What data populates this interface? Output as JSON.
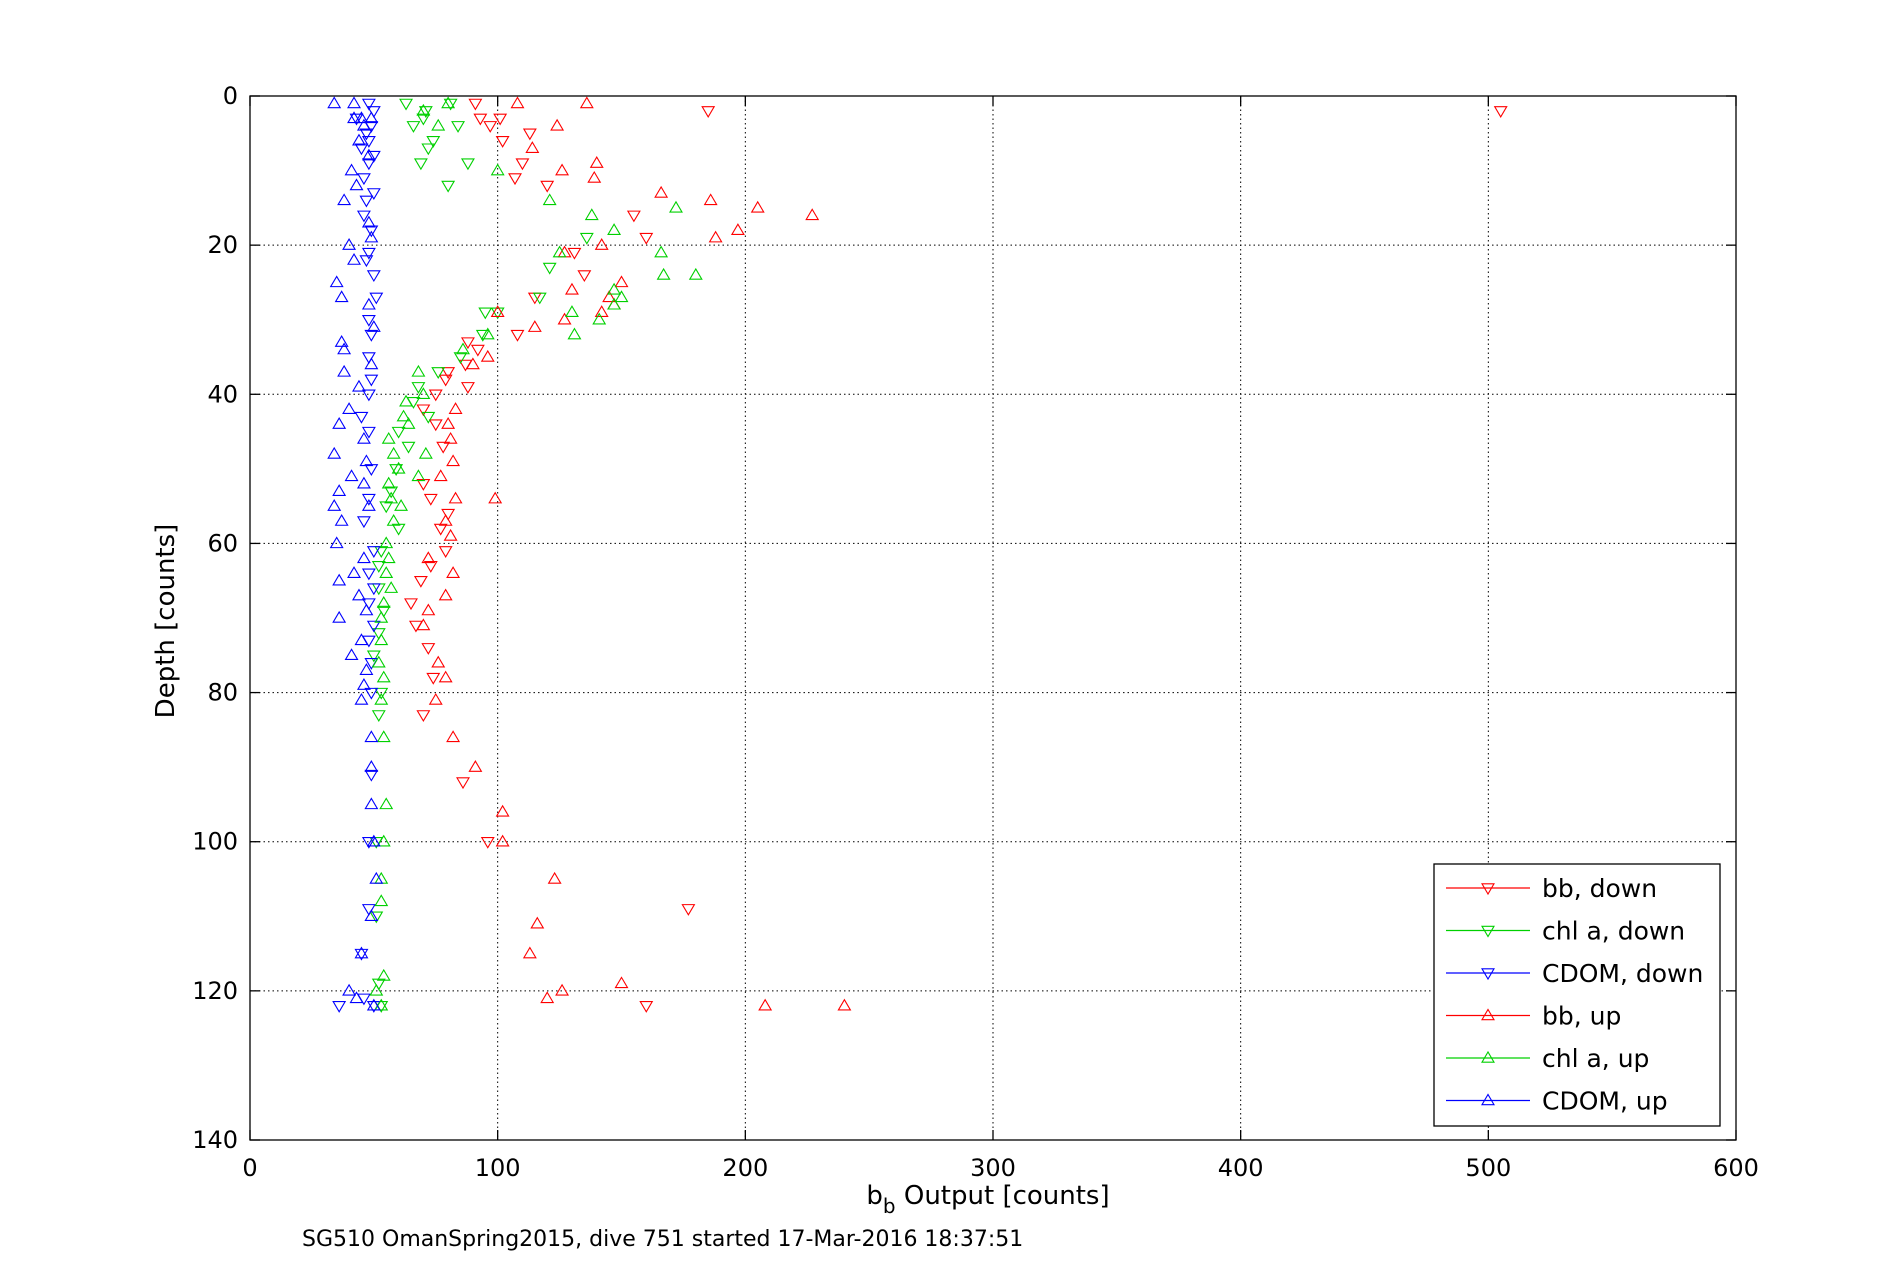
{
  "chart_data": {
    "type": "scatter",
    "title": "",
    "xlabel_main": "b",
    "xlabel_sub": "b",
    "xlabel_rest": " Output [counts]",
    "ylabel": "Depth [counts]",
    "xlim": [
      0,
      600
    ],
    "ylim": [
      0,
      140
    ],
    "y_reversed": true,
    "xticks": [
      "0",
      "100",
      "200",
      "300",
      "400",
      "500",
      "600"
    ],
    "yticks": [
      "0",
      "20",
      "40",
      "60",
      "80",
      "100",
      "120",
      "140"
    ],
    "grid": true,
    "legend_position": "lower-right",
    "caption": "SG510 OmanSpring2015, dive 751 started 17-Mar-2016 18:37:51",
    "series": [
      {
        "name": "bb, down",
        "color": "#ff0000",
        "marker": "triangle-down",
        "points": [
          [
            91,
            1
          ],
          [
            185,
            2
          ],
          [
            505,
            2
          ],
          [
            93,
            3
          ],
          [
            101,
            3
          ],
          [
            97,
            4
          ],
          [
            113,
            5
          ],
          [
            102,
            6
          ],
          [
            110,
            9
          ],
          [
            107,
            11
          ],
          [
            120,
            12
          ],
          [
            155,
            16
          ],
          [
            160,
            19
          ],
          [
            131,
            21
          ],
          [
            135,
            24
          ],
          [
            115,
            27
          ],
          [
            108,
            32
          ],
          [
            88,
            33
          ],
          [
            92,
            34
          ],
          [
            87,
            36
          ],
          [
            80,
            37
          ],
          [
            79,
            38
          ],
          [
            88,
            39
          ],
          [
            75,
            40
          ],
          [
            70,
            42
          ],
          [
            75,
            44
          ],
          [
            78,
            47
          ],
          [
            70,
            52
          ],
          [
            73,
            54
          ],
          [
            80,
            56
          ],
          [
            77,
            58
          ],
          [
            79,
            61
          ],
          [
            73,
            63
          ],
          [
            69,
            65
          ],
          [
            65,
            68
          ],
          [
            67,
            71
          ],
          [
            72,
            74
          ],
          [
            74,
            78
          ],
          [
            70,
            83
          ],
          [
            86,
            92
          ],
          [
            96,
            100
          ],
          [
            177,
            109
          ],
          [
            160,
            122
          ]
        ]
      },
      {
        "name": "chl a, down",
        "color": "#00d000",
        "marker": "triangle-down",
        "points": [
          [
            63,
            1
          ],
          [
            81,
            1
          ],
          [
            71,
            2
          ],
          [
            70,
            3
          ],
          [
            66,
            4
          ],
          [
            84,
            4
          ],
          [
            74,
            6
          ],
          [
            72,
            7
          ],
          [
            69,
            9
          ],
          [
            88,
            9
          ],
          [
            80,
            12
          ],
          [
            136,
            19
          ],
          [
            121,
            23
          ],
          [
            117,
            27
          ],
          [
            100,
            29
          ],
          [
            94,
            32
          ],
          [
            95,
            29
          ],
          [
            85,
            35
          ],
          [
            76,
            37
          ],
          [
            68,
            39
          ],
          [
            66,
            41
          ],
          [
            72,
            43
          ],
          [
            60,
            45
          ],
          [
            64,
            47
          ],
          [
            59,
            50
          ],
          [
            57,
            53
          ],
          [
            55,
            55
          ],
          [
            60,
            58
          ],
          [
            53,
            61
          ],
          [
            52,
            63
          ],
          [
            52,
            66
          ],
          [
            54,
            69
          ],
          [
            52,
            72
          ],
          [
            50,
            75
          ],
          [
            53,
            80
          ],
          [
            52,
            83
          ],
          [
            51,
            100
          ],
          [
            51,
            110
          ],
          [
            52,
            119
          ],
          [
            53,
            122
          ]
        ]
      },
      {
        "name": "CDOM, down",
        "color": "#0000ff",
        "marker": "triangle-down",
        "points": [
          [
            48,
            1
          ],
          [
            50,
            2
          ],
          [
            43,
            3
          ],
          [
            49,
            4
          ],
          [
            47,
            5
          ],
          [
            48,
            6
          ],
          [
            45,
            7
          ],
          [
            50,
            8
          ],
          [
            48,
            9
          ],
          [
            46,
            11
          ],
          [
            50,
            13
          ],
          [
            47,
            14
          ],
          [
            46,
            16
          ],
          [
            49,
            18
          ],
          [
            48,
            21
          ],
          [
            47,
            22
          ],
          [
            50,
            24
          ],
          [
            51,
            27
          ],
          [
            48,
            30
          ],
          [
            49,
            32
          ],
          [
            48,
            35
          ],
          [
            49,
            38
          ],
          [
            48,
            40
          ],
          [
            45,
            43
          ],
          [
            48,
            45
          ],
          [
            49,
            50
          ],
          [
            48,
            54
          ],
          [
            46,
            57
          ],
          [
            50,
            61
          ],
          [
            48,
            64
          ],
          [
            50,
            66
          ],
          [
            48,
            68
          ],
          [
            50,
            71
          ],
          [
            48,
            73
          ],
          [
            49,
            76
          ],
          [
            49,
            80
          ],
          [
            49,
            91
          ],
          [
            48,
            100
          ],
          [
            48,
            109
          ],
          [
            45,
            115
          ],
          [
            46,
            121
          ],
          [
            36,
            122
          ],
          [
            50,
            122
          ]
        ]
      },
      {
        "name": "bb, up",
        "color": "#ff0000",
        "marker": "triangle-up",
        "points": [
          [
            136,
            1
          ],
          [
            108,
            1
          ],
          [
            124,
            4
          ],
          [
            114,
            7
          ],
          [
            140,
            9
          ],
          [
            139,
            11
          ],
          [
            126,
            10
          ],
          [
            166,
            13
          ],
          [
            186,
            14
          ],
          [
            205,
            15
          ],
          [
            227,
            16
          ],
          [
            197,
            18
          ],
          [
            188,
            19
          ],
          [
            142,
            20
          ],
          [
            127,
            21
          ],
          [
            150,
            25
          ],
          [
            145,
            27
          ],
          [
            147,
            28
          ],
          [
            142,
            29
          ],
          [
            127,
            30
          ],
          [
            130,
            26
          ],
          [
            100,
            29
          ],
          [
            115,
            31
          ],
          [
            96,
            35
          ],
          [
            90,
            36
          ],
          [
            83,
            42
          ],
          [
            80,
            44
          ],
          [
            81,
            46
          ],
          [
            82,
            49
          ],
          [
            77,
            51
          ],
          [
            83,
            54
          ],
          [
            99,
            54
          ],
          [
            79,
            57
          ],
          [
            81,
            59
          ],
          [
            72,
            62
          ],
          [
            82,
            64
          ],
          [
            79,
            67
          ],
          [
            72,
            69
          ],
          [
            70,
            71
          ],
          [
            76,
            76
          ],
          [
            79,
            78
          ],
          [
            75,
            81
          ],
          [
            82,
            86
          ],
          [
            91,
            90
          ],
          [
            102,
            96
          ],
          [
            102,
            100
          ],
          [
            123,
            105
          ],
          [
            116,
            111
          ],
          [
            113,
            115
          ],
          [
            126,
            120
          ],
          [
            150,
            119
          ],
          [
            120,
            121
          ],
          [
            208,
            122
          ],
          [
            240,
            122
          ]
        ]
      },
      {
        "name": "chl a, up",
        "color": "#00d000",
        "marker": "triangle-up",
        "points": [
          [
            80,
            1
          ],
          [
            70,
            2
          ],
          [
            76,
            4
          ],
          [
            100,
            10
          ],
          [
            121,
            14
          ],
          [
            138,
            16
          ],
          [
            172,
            15
          ],
          [
            147,
            18
          ],
          [
            125,
            21
          ],
          [
            166,
            21
          ],
          [
            180,
            24
          ],
          [
            167,
            24
          ],
          [
            147,
            26
          ],
          [
            150,
            27
          ],
          [
            147,
            28
          ],
          [
            141,
            30
          ],
          [
            130,
            29
          ],
          [
            131,
            32
          ],
          [
            96,
            32
          ],
          [
            86,
            34
          ],
          [
            68,
            37
          ],
          [
            70,
            40
          ],
          [
            63,
            41
          ],
          [
            62,
            43
          ],
          [
            64,
            44
          ],
          [
            56,
            46
          ],
          [
            71,
            48
          ],
          [
            58,
            48
          ],
          [
            60,
            50
          ],
          [
            68,
            51
          ],
          [
            56,
            52
          ],
          [
            57,
            54
          ],
          [
            61,
            55
          ],
          [
            58,
            57
          ],
          [
            55,
            60
          ],
          [
            56,
            62
          ],
          [
            55,
            64
          ],
          [
            57,
            66
          ],
          [
            54,
            68
          ],
          [
            53,
            70
          ],
          [
            53,
            73
          ],
          [
            52,
            76
          ],
          [
            54,
            78
          ],
          [
            53,
            81
          ],
          [
            54,
            86
          ],
          [
            55,
            95
          ],
          [
            54,
            100
          ],
          [
            53,
            105
          ],
          [
            53,
            108
          ],
          [
            54,
            118
          ],
          [
            51,
            120
          ],
          [
            53,
            122
          ]
        ]
      },
      {
        "name": "CDOM, up",
        "color": "#0000ff",
        "marker": "triangle-up",
        "points": [
          [
            34,
            1
          ],
          [
            42,
            1
          ],
          [
            45,
            3
          ],
          [
            42,
            3
          ],
          [
            46,
            4
          ],
          [
            49,
            3
          ],
          [
            44,
            6
          ],
          [
            48,
            8
          ],
          [
            41,
            10
          ],
          [
            43,
            12
          ],
          [
            38,
            14
          ],
          [
            48,
            17
          ],
          [
            49,
            19
          ],
          [
            40,
            20
          ],
          [
            42,
            22
          ],
          [
            35,
            25
          ],
          [
            37,
            27
          ],
          [
            48,
            28
          ],
          [
            50,
            31
          ],
          [
            37,
            33
          ],
          [
            38,
            34
          ],
          [
            49,
            36
          ],
          [
            38,
            37
          ],
          [
            44,
            39
          ],
          [
            40,
            42
          ],
          [
            36,
            44
          ],
          [
            46,
            46
          ],
          [
            34,
            48
          ],
          [
            47,
            49
          ],
          [
            41,
            51
          ],
          [
            46,
            52
          ],
          [
            36,
            53
          ],
          [
            34,
            55
          ],
          [
            37,
            57
          ],
          [
            48,
            55
          ],
          [
            35,
            60
          ],
          [
            46,
            62
          ],
          [
            42,
            64
          ],
          [
            36,
            65
          ],
          [
            44,
            67
          ],
          [
            47,
            69
          ],
          [
            36,
            70
          ],
          [
            45,
            73
          ],
          [
            41,
            75
          ],
          [
            47,
            77
          ],
          [
            46,
            79
          ],
          [
            45,
            81
          ],
          [
            49,
            86
          ],
          [
            49,
            90
          ],
          [
            49,
            95
          ],
          [
            50,
            100
          ],
          [
            51,
            105
          ],
          [
            49,
            110
          ],
          [
            45,
            115
          ],
          [
            40,
            120
          ],
          [
            43,
            121
          ],
          [
            50,
            122
          ]
        ]
      }
    ]
  }
}
